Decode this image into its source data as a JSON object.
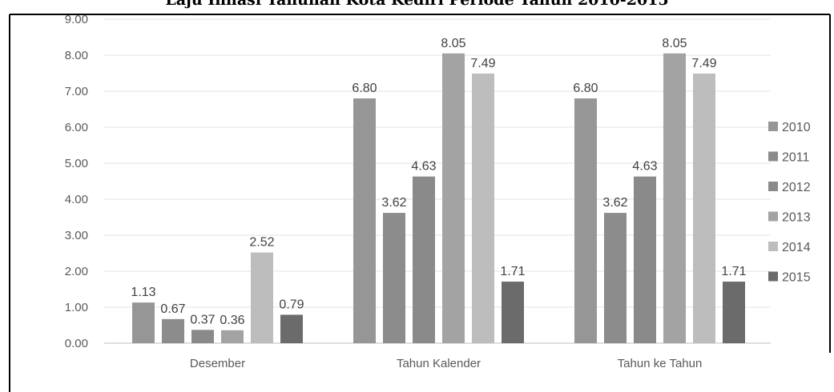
{
  "chart_data": {
    "type": "bar",
    "title": "Laju Inflasi Tahunan Kota Kediri Periode Tahun 2010-2015",
    "categories": [
      "Desember",
      "Tahun Kalender",
      "Tahun ke Tahun"
    ],
    "series": [
      {
        "name": "2010",
        "color": "#969696",
        "values": [
          1.13,
          6.8,
          6.8
        ]
      },
      {
        "name": "2011",
        "color": "#8c8c8c",
        "values": [
          0.67,
          3.62,
          3.62
        ]
      },
      {
        "name": "2012",
        "color": "#8a8a8a",
        "values": [
          0.37,
          4.63,
          4.63
        ]
      },
      {
        "name": "2013",
        "color": "#a3a3a3",
        "values": [
          0.36,
          8.05,
          8.05
        ]
      },
      {
        "name": "2014",
        "color": "#bdbdbd",
        "values": [
          2.52,
          7.49,
          7.49
        ]
      },
      {
        "name": "2015",
        "color": "#6b6b6b",
        "values": [
          0.79,
          1.71,
          1.71
        ]
      }
    ],
    "value_labels": [
      [
        "1.13",
        "6.80",
        "6.80"
      ],
      [
        "0.67",
        "3.62",
        "3.62"
      ],
      [
        "0.37",
        "4.63",
        "4.63"
      ],
      [
        "0.36",
        "8.05",
        "8.05"
      ],
      [
        "2.52",
        "7.49",
        "7.49"
      ],
      [
        "0.79",
        "1.71",
        "1.71"
      ]
    ],
    "y_ticks": [
      "0.00",
      "1.00",
      "2.00",
      "3.00",
      "4.00",
      "5.00",
      "6.00",
      "7.00",
      "8.00",
      "9.00"
    ],
    "ylim": [
      0,
      9
    ],
    "grid": true,
    "legend_position": "right"
  }
}
